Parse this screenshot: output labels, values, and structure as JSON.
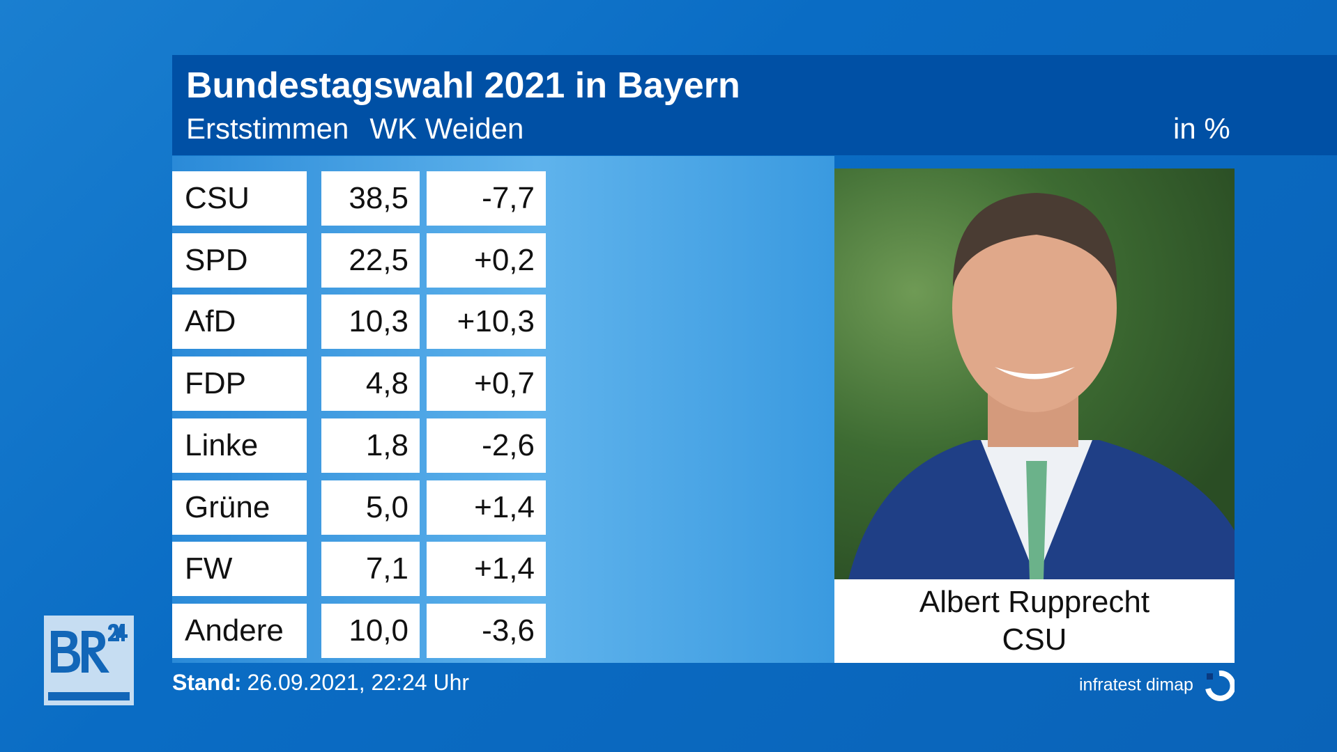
{
  "header": {
    "title": "Bundestagswahl 2021 in Bayern",
    "subtitle_vote": "Erststimmen",
    "subtitle_district": "WK Weiden",
    "unit": "in %"
  },
  "results": [
    {
      "party": "CSU",
      "share": "38,5",
      "change": "-7,7"
    },
    {
      "party": "SPD",
      "share": "22,5",
      "change": "+0,2"
    },
    {
      "party": "AfD",
      "share": "10,3",
      "change": "+10,3"
    },
    {
      "party": "FDP",
      "share": "4,8",
      "change": "+0,7"
    },
    {
      "party": "Linke",
      "share": "1,8",
      "change": "-2,6"
    },
    {
      "party": "Grüne",
      "share": "5,0",
      "change": "+1,4"
    },
    {
      "party": "FW",
      "share": "7,1",
      "change": "+1,4"
    },
    {
      "party": "Andere",
      "share": "10,0",
      "change": "-3,6"
    }
  ],
  "winner": {
    "name": "Albert Rupprecht",
    "party": "CSU"
  },
  "footer": {
    "stand_label": "Stand:",
    "stand_value": "26.09.2021, 22:24 Uhr",
    "source": "infratest dimap"
  },
  "logo": {
    "text": "BR24"
  },
  "colors": {
    "header": "#0050a5",
    "background": "#0a6cc4"
  }
}
